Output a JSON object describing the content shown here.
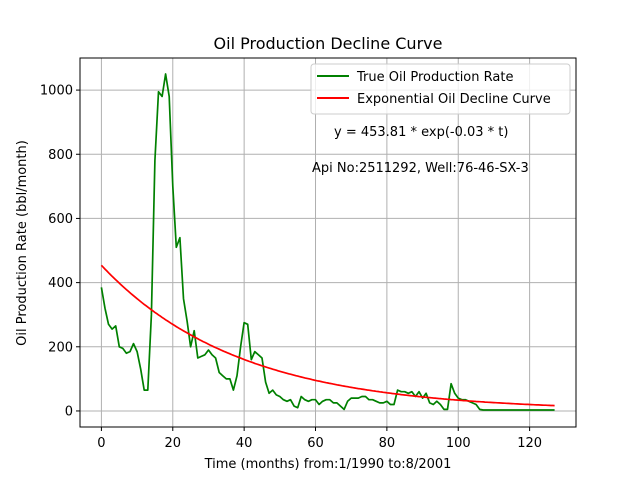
{
  "chart_data": {
    "type": "line",
    "title": "Oil Production Decline Curve",
    "xlabel": "Time (months) from:1/1990 to:8/2001",
    "ylabel": "Oil Production Rate (bbl/month)",
    "xlim": [
      -6,
      133
    ],
    "ylim": [
      -50,
      1100
    ],
    "xticks": [
      0,
      20,
      40,
      60,
      80,
      100,
      120
    ],
    "yticks": [
      0,
      200,
      400,
      600,
      800,
      1000
    ],
    "grid": true,
    "legend_position": "top-right",
    "annotations": [
      "y = 453.81 * exp(-0.03 * t)",
      "Api No:2511292, Well:76-46-SX-3"
    ],
    "series": [
      {
        "name": "True Oil Production Rate",
        "color": "#008000",
        "x": [
          0,
          1,
          2,
          3,
          4,
          5,
          6,
          7,
          8,
          9,
          10,
          11,
          12,
          13,
          14,
          15,
          16,
          17,
          18,
          19,
          20,
          21,
          22,
          23,
          24,
          25,
          26,
          27,
          28,
          29,
          30,
          31,
          32,
          33,
          34,
          35,
          36,
          37,
          38,
          39,
          40,
          41,
          42,
          43,
          44,
          45,
          46,
          47,
          48,
          49,
          50,
          51,
          52,
          53,
          54,
          55,
          56,
          57,
          58,
          59,
          60,
          61,
          62,
          63,
          64,
          65,
          66,
          67,
          68,
          69,
          70,
          71,
          72,
          73,
          74,
          75,
          76,
          77,
          78,
          79,
          80,
          81,
          82,
          83,
          84,
          85,
          86,
          87,
          88,
          89,
          90,
          91,
          92,
          93,
          94,
          95,
          96,
          97,
          98,
          99,
          100,
          101,
          102,
          103,
          104,
          105,
          106,
          107,
          108,
          109,
          110,
          111,
          112,
          113,
          114,
          115,
          116,
          117,
          118,
          119,
          120,
          121,
          122,
          123,
          124,
          125,
          126,
          127
        ],
        "values": [
          385,
          320,
          270,
          255,
          265,
          200,
          195,
          180,
          185,
          210,
          185,
          130,
          65,
          65,
          300,
          780,
          995,
          980,
          1050,
          980,
          700,
          510,
          540,
          350,
          280,
          200,
          250,
          165,
          170,
          175,
          190,
          175,
          165,
          120,
          110,
          100,
          100,
          65,
          110,
          200,
          275,
          270,
          160,
          185,
          175,
          165,
          90,
          55,
          65,
          50,
          45,
          35,
          30,
          35,
          15,
          10,
          45,
          35,
          30,
          35,
          35,
          20,
          30,
          35,
          35,
          25,
          25,
          15,
          5,
          30,
          40,
          40,
          40,
          45,
          45,
          35,
          35,
          30,
          25,
          25,
          30,
          20,
          20,
          65,
          60,
          60,
          55,
          60,
          45,
          60,
          40,
          55,
          25,
          20,
          30,
          20,
          5,
          5,
          85,
          55,
          40,
          35,
          35,
          30,
          25,
          20,
          5,
          3,
          3,
          3,
          3,
          3,
          3,
          3,
          3,
          3,
          3,
          3,
          3,
          3,
          3,
          3,
          3,
          3,
          3,
          3,
          3,
          3
        ]
      },
      {
        "name": "Exponential Oil Decline Curve",
        "color": "#ff0000",
        "x_start": 0,
        "x_end": 127,
        "a": 453.81,
        "b": -0.026
      }
    ]
  }
}
